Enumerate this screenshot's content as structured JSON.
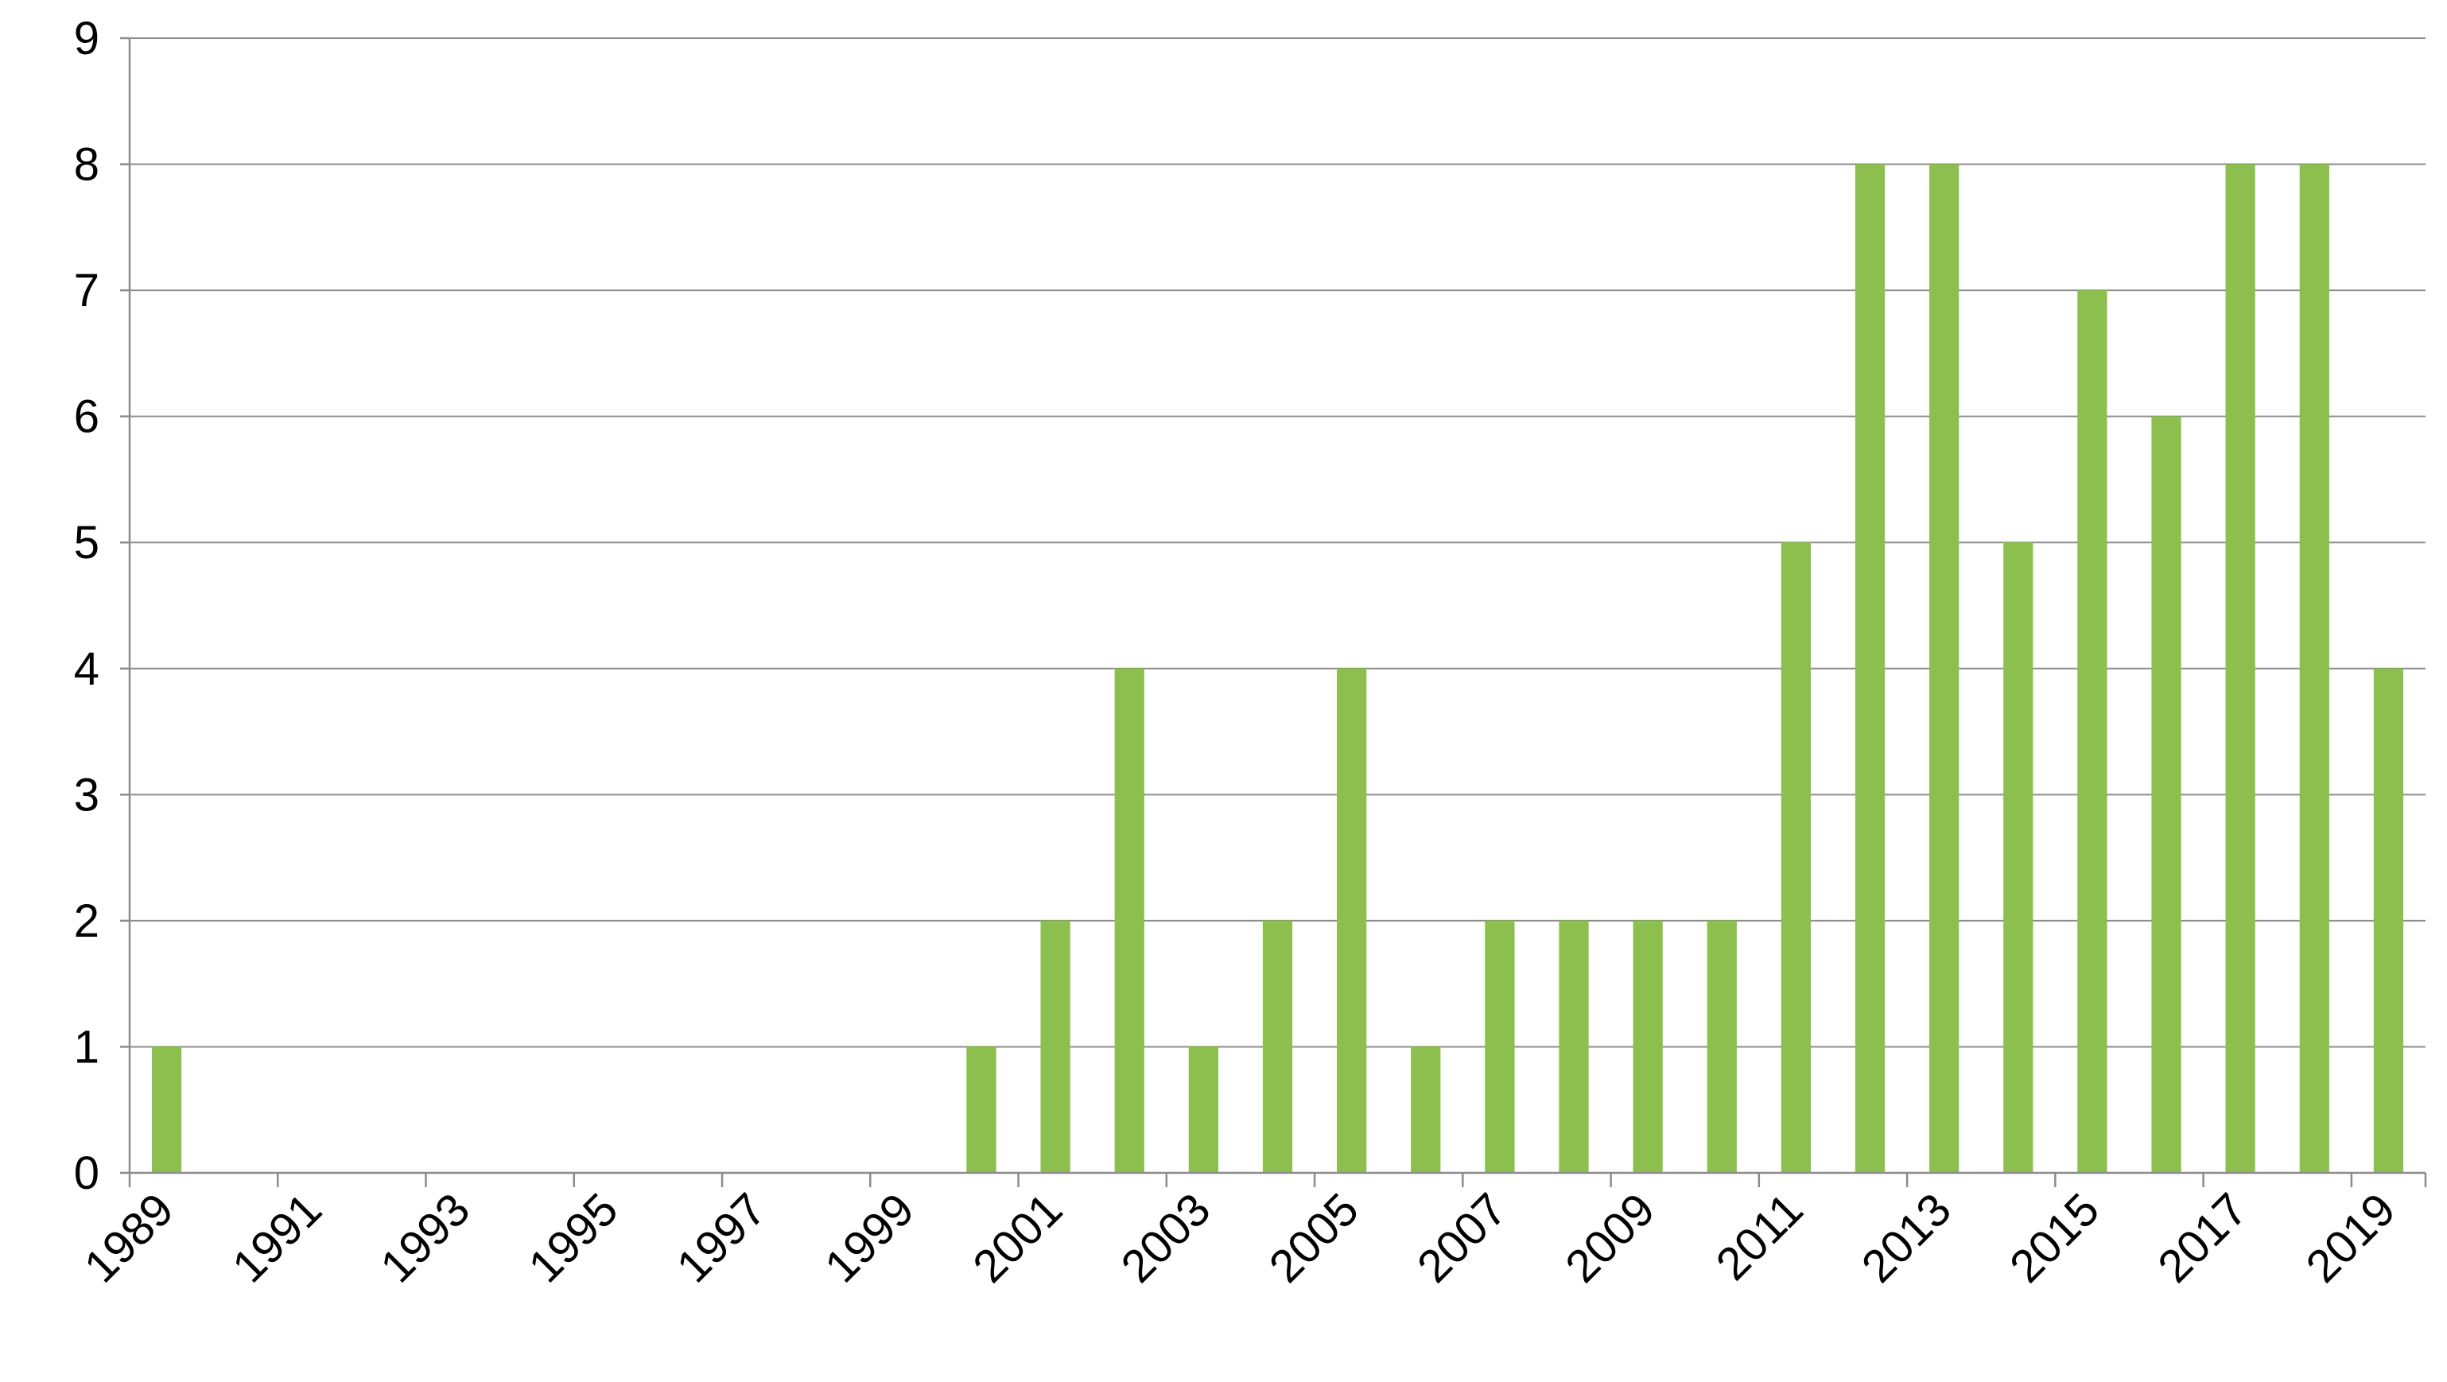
{
  "chart_data": {
    "type": "bar",
    "title": "",
    "xlabel": "",
    "ylabel": "",
    "ylim": [
      0,
      9
    ],
    "yticks": [
      0,
      1,
      2,
      3,
      4,
      5,
      6,
      7,
      8,
      9
    ],
    "grid": true,
    "legend": "none",
    "bar_color": "#8cbf4e",
    "categories": [
      "1989",
      "1990",
      "1991",
      "1992",
      "1993",
      "1994",
      "1995",
      "1996",
      "1997",
      "1998",
      "1999",
      "2000",
      "2001",
      "2002",
      "2003",
      "2004",
      "2005",
      "2006",
      "2007",
      "2008",
      "2009",
      "2010",
      "2011",
      "2012",
      "2013",
      "2014",
      "2015",
      "2016",
      "2017",
      "2018",
      "2019"
    ],
    "tick_labels": [
      "1989",
      "1991",
      "1993",
      "1995",
      "1997",
      "1999",
      "2001",
      "2003",
      "2005",
      "2007",
      "2009",
      "2011",
      "2013",
      "2015",
      "2017",
      "2019"
    ],
    "values": [
      1,
      0,
      0,
      0,
      0,
      0,
      0,
      0,
      0,
      0,
      0,
      1,
      2,
      4,
      1,
      2,
      4,
      1,
      2,
      2,
      2,
      2,
      5,
      8,
      8,
      5,
      7,
      6,
      8,
      8,
      4
    ]
  }
}
